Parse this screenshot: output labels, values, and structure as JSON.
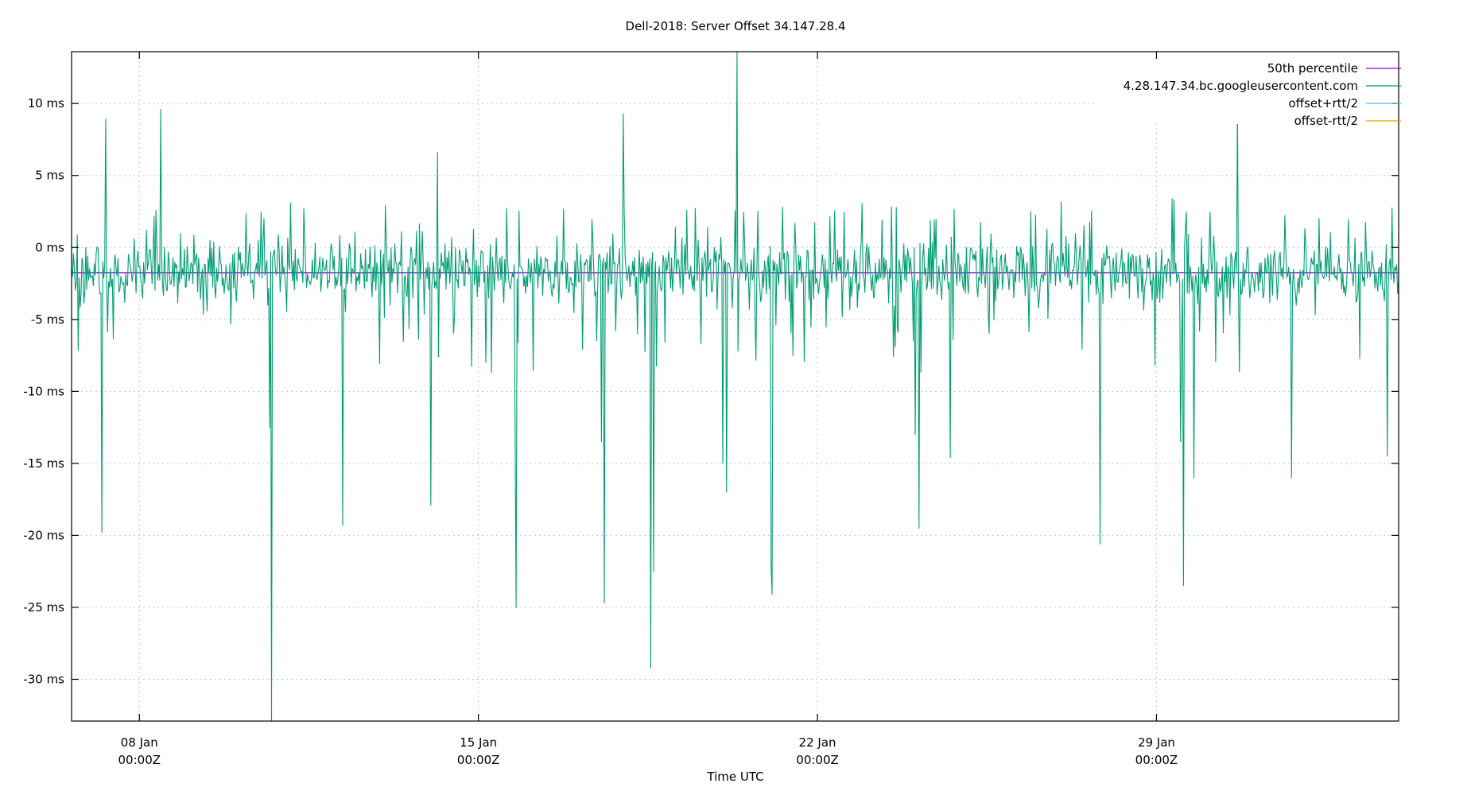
{
  "chart_data": {
    "type": "line",
    "title": "Dell-2018: Server Offset 34.147.28.4",
    "xlabel": "Time UTC",
    "ylabel": "",
    "ylim": [
      -32.9,
      13.6
    ],
    "grid": true,
    "legend_position": "top-right",
    "y_ticks": [
      {
        "value": 10,
        "label": "10 ms"
      },
      {
        "value": 5,
        "label": "5 ms"
      },
      {
        "value": 0,
        "label": "0 ms"
      },
      {
        "value": -5,
        "label": "-5 ms"
      },
      {
        "value": -10,
        "label": "-10 ms"
      },
      {
        "value": -15,
        "label": "-15 ms"
      },
      {
        "value": -20,
        "label": "-20 ms"
      },
      {
        "value": -25,
        "label": "-25 ms"
      },
      {
        "value": -30,
        "label": "-30 ms"
      }
    ],
    "x_range_days": [
      0,
      27.4
    ],
    "x_range_note": "plot spans approx 06 Jan 14:00Z to 03 Feb 00:00Z",
    "x_ticks": [
      {
        "day": 1.4,
        "line1": "08 Jan",
        "line2": "00:00Z"
      },
      {
        "day": 8.4,
        "line1": "15 Jan",
        "line2": "00:00Z"
      },
      {
        "day": 15.4,
        "line1": "22 Jan",
        "line2": "00:00Z"
      },
      {
        "day": 22.4,
        "line1": "29 Jan",
        "line2": "00:00Z"
      }
    ],
    "series": [
      {
        "name": "50th percentile",
        "color": "#9400d3",
        "type": "constant",
        "value": -1.75
      },
      {
        "name": "4.28.147.34.bc.googleusercontent.com",
        "color": "#009e73",
        "type": "noisy",
        "baseline": -1.75,
        "typical_range": [
          -5,
          3
        ],
        "spikes": [
          {
            "day": 0.63,
            "value": -19.8
          },
          {
            "day": 0.7,
            "value": 8.9
          },
          {
            "day": 1.84,
            "value": 9.6
          },
          {
            "day": 4.1,
            "value": -12.5
          },
          {
            "day": 4.12,
            "value": -33.0
          },
          {
            "day": 5.6,
            "value": -19.3
          },
          {
            "day": 7.42,
            "value": -17.9
          },
          {
            "day": 7.55,
            "value": 6.6
          },
          {
            "day": 9.16,
            "value": -13.7
          },
          {
            "day": 9.18,
            "value": -25.0
          },
          {
            "day": 10.95,
            "value": -13.5
          },
          {
            "day": 11.0,
            "value": -24.7
          },
          {
            "day": 11.39,
            "value": 9.3
          },
          {
            "day": 11.95,
            "value": -29.2
          },
          {
            "day": 12.02,
            "value": -22.5
          },
          {
            "day": 13.45,
            "value": -15.0
          },
          {
            "day": 13.53,
            "value": -17.0
          },
          {
            "day": 13.74,
            "value": 13.6
          },
          {
            "day": 14.45,
            "value": -22.2
          },
          {
            "day": 14.47,
            "value": -24.1
          },
          {
            "day": 17.42,
            "value": -13.0
          },
          {
            "day": 17.49,
            "value": -19.5
          },
          {
            "day": 18.14,
            "value": -14.6
          },
          {
            "day": 21.23,
            "value": -20.6
          },
          {
            "day": 22.89,
            "value": -13.5
          },
          {
            "day": 22.96,
            "value": -23.5
          },
          {
            "day": 23.17,
            "value": -16.0
          },
          {
            "day": 24.07,
            "value": 9.7
          },
          {
            "day": 25.18,
            "value": -16.0
          },
          {
            "day": 27.17,
            "value": -14.5
          }
        ]
      },
      {
        "name": "offset+rtt/2",
        "color": "#56b4e9",
        "type": "legend-only"
      },
      {
        "name": "offset-rtt/2",
        "color": "#e69f00",
        "type": "legend-only"
      }
    ]
  }
}
